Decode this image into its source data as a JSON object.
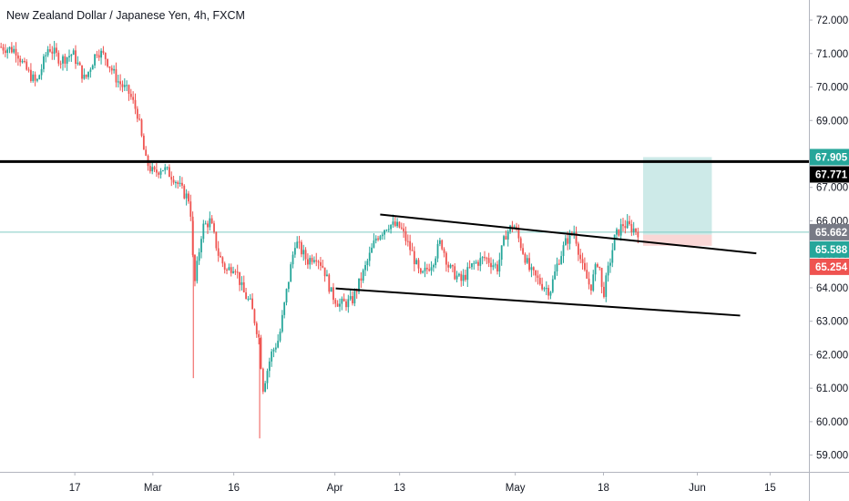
{
  "title": "New Zealand Dollar / Japanese Yen, 4h, FXCM",
  "colors": {
    "up": "#26a69a",
    "down": "#ef5350",
    "hline": "#000000",
    "trend": "#000000",
    "profit": "#b2dfdb",
    "loss": "#f8c9c8",
    "hline_cyan": "#80cbc4",
    "tag_green": "#26a69a",
    "tag_black": "#000000",
    "tag_gray": "#787b86",
    "tag_red": "#ef5350"
  },
  "chart_data": {
    "type": "candlestick",
    "symbol": "NZDJPY",
    "timeframe": "4h",
    "ylim": [
      58.5,
      72.6
    ],
    "y_ticks": [
      "59.000",
      "60.000",
      "61.000",
      "62.000",
      "63.000",
      "64.000",
      "65.000",
      "66.000",
      "67.000",
      "68.000",
      "69.000",
      "70.000",
      "71.000",
      "72.000"
    ],
    "x_ticks": [
      {
        "label": "17",
        "i": 0.0925
      },
      {
        "label": "Mar",
        "i": 0.189
      },
      {
        "label": "16",
        "i": 0.289
      },
      {
        "label": "Apr",
        "i": 0.414
      },
      {
        "label": "13",
        "i": 0.494
      },
      {
        "label": "May",
        "i": 0.637
      },
      {
        "label": "18",
        "i": 0.746
      },
      {
        "label": "Jun",
        "i": 0.862
      },
      {
        "label": "15",
        "i": 0.952
      }
    ],
    "price_path": [
      [
        0.0,
        71.2
      ],
      [
        0.02,
        71.1
      ],
      [
        0.03,
        70.6
      ],
      [
        0.045,
        70.1
      ],
      [
        0.06,
        71.2
      ],
      [
        0.075,
        70.8
      ],
      [
        0.09,
        71.0
      ],
      [
        0.105,
        70.2
      ],
      [
        0.12,
        71.1
      ],
      [
        0.13,
        70.9
      ],
      [
        0.145,
        70.2
      ],
      [
        0.16,
        69.8
      ],
      [
        0.17,
        69.2
      ],
      [
        0.18,
        67.8
      ],
      [
        0.19,
        67.4
      ],
      [
        0.2,
        67.6
      ],
      [
        0.215,
        67.3
      ],
      [
        0.225,
        66.9
      ],
      [
        0.235,
        66.6
      ],
      [
        0.24,
        64.0
      ],
      [
        0.25,
        65.8
      ],
      [
        0.26,
        66.0
      ],
      [
        0.27,
        65.0
      ],
      [
        0.28,
        64.5
      ],
      [
        0.29,
        64.7
      ],
      [
        0.3,
        63.9
      ],
      [
        0.31,
        63.5
      ],
      [
        0.32,
        62.5
      ],
      [
        0.325,
        61.0
      ],
      [
        0.335,
        62.0
      ],
      [
        0.345,
        62.5
      ],
      [
        0.355,
        64.0
      ],
      [
        0.365,
        65.4
      ],
      [
        0.38,
        64.8
      ],
      [
        0.39,
        65.0
      ],
      [
        0.4,
        64.6
      ],
      [
        0.41,
        63.8
      ],
      [
        0.42,
        63.5
      ],
      [
        0.435,
        63.6
      ],
      [
        0.45,
        64.5
      ],
      [
        0.465,
        65.5
      ],
      [
        0.48,
        65.9
      ],
      [
        0.495,
        65.8
      ],
      [
        0.51,
        65.0
      ],
      [
        0.52,
        64.3
      ],
      [
        0.535,
        64.8
      ],
      [
        0.545,
        65.4
      ],
      [
        0.555,
        64.6
      ],
      [
        0.57,
        64.2
      ],
      [
        0.585,
        64.7
      ],
      [
        0.6,
        64.9
      ],
      [
        0.615,
        64.6
      ],
      [
        0.625,
        65.6
      ],
      [
        0.635,
        65.9
      ],
      [
        0.645,
        65.2
      ],
      [
        0.655,
        64.5
      ],
      [
        0.67,
        64.1
      ],
      [
        0.68,
        63.9
      ],
      [
        0.69,
        64.8
      ],
      [
        0.7,
        65.4
      ],
      [
        0.71,
        65.7
      ],
      [
        0.72,
        64.6
      ],
      [
        0.73,
        64.0
      ],
      [
        0.74,
        64.9
      ],
      [
        0.745,
        63.7
      ],
      [
        0.75,
        64.3
      ],
      [
        0.76,
        65.5
      ],
      [
        0.77,
        65.9
      ],
      [
        0.78,
        65.8
      ],
      [
        0.79,
        65.662
      ]
    ],
    "horizontal_level": 67.771,
    "current_price": 65.662,
    "trendlines": [
      {
        "name": "channel-upper",
        "from": [
          0.47,
          66.19
        ],
        "to": [
          0.935,
          65.03
        ]
      },
      {
        "name": "channel-lower",
        "from": [
          0.415,
          63.98
        ],
        "to": [
          0.915,
          63.17
        ]
      }
    ],
    "position": {
      "type": "long",
      "entry": 65.588,
      "target": 67.905,
      "stop": 65.254,
      "x_range": [
        0.795,
        0.88
      ]
    },
    "price_tags": [
      {
        "name": "target-tag",
        "value": "67.905",
        "price": 67.905,
        "color": "#26a69a"
      },
      {
        "name": "level-tag",
        "value": "67.771",
        "price": 67.771,
        "color": "#000000"
      },
      {
        "name": "last-price-tag",
        "value": "65.662",
        "price": 65.662,
        "color": "#787b86"
      },
      {
        "name": "entry-tag",
        "value": "65.588",
        "price": 65.588,
        "color": "#26a69a"
      },
      {
        "name": "stop-tag",
        "value": "65.254",
        "price": 65.254,
        "color": "#ef5350"
      }
    ]
  }
}
